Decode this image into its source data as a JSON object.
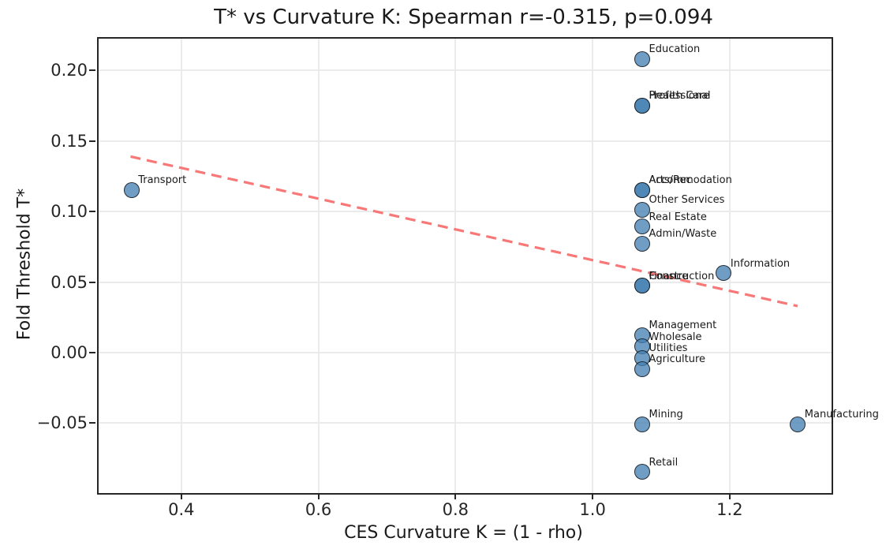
{
  "chart_data": {
    "type": "scatter",
    "title": "T* vs Curvature K: Spearman r=-0.315, p=0.094",
    "xlabel": "CES Curvature K = (1 - rho)",
    "ylabel": "Fold Threshold T*",
    "xlim": [
      0.2794,
      1.3486
    ],
    "ylim": [
      -0.0996,
      0.2226
    ],
    "grid": true,
    "legend": false,
    "x_ticks": {
      "values": [
        0.4,
        0.6,
        0.8,
        1.0,
        1.2
      ],
      "labels": [
        "0.4",
        "0.6",
        "0.8",
        "1.0",
        "1.2"
      ]
    },
    "y_ticks": {
      "values": [
        0.2,
        0.15,
        0.1,
        0.05,
        0.0,
        -0.05
      ],
      "labels": [
        "0.20",
        "0.15",
        "0.10",
        "0.05",
        "0.00",
        "−0.05"
      ]
    },
    "points": [
      {
        "label": "Education",
        "x": 1.073,
        "y": 0.208
      },
      {
        "label": "Health Care",
        "x": 1.073,
        "y": 0.175
      },
      {
        "label": "Professional",
        "x": 1.073,
        "y": 0.175
      },
      {
        "label": "Transport",
        "x": 0.328,
        "y": 0.115
      },
      {
        "label": "Arts/Rec",
        "x": 1.073,
        "y": 0.115
      },
      {
        "label": "Accommodation",
        "x": 1.073,
        "y": 0.115
      },
      {
        "label": "Other Services",
        "x": 1.073,
        "y": 0.101
      },
      {
        "label": "Real Estate",
        "x": 1.073,
        "y": 0.089
      },
      {
        "label": "Admin/Waste",
        "x": 1.073,
        "y": 0.077
      },
      {
        "label": "Information",
        "x": 1.192,
        "y": 0.056
      },
      {
        "label": "Construction",
        "x": 1.073,
        "y": 0.047
      },
      {
        "label": "Finance",
        "x": 1.073,
        "y": 0.047
      },
      {
        "label": "Management",
        "x": 1.073,
        "y": 0.012
      },
      {
        "label": "Wholesale",
        "x": 1.073,
        "y": 0.004
      },
      {
        "label": "Utilities",
        "x": 1.073,
        "y": -0.004
      },
      {
        "label": "Agriculture",
        "x": 1.073,
        "y": -0.012
      },
      {
        "label": "Mining",
        "x": 1.073,
        "y": -0.051
      },
      {
        "label": "Manufacturing",
        "x": 1.3,
        "y": -0.051
      },
      {
        "label": "Retail",
        "x": 1.073,
        "y": -0.085
      }
    ],
    "trend_line": {
      "style": "dashed",
      "x": [
        0.326,
        1.299
      ],
      "y": [
        0.139,
        0.033
      ]
    },
    "colors": {
      "marker_fill": "#4682b4",
      "marker_edge": "#111111",
      "trend": "#f87878",
      "grid": "#ebebeb",
      "spine": "#262626",
      "text": "#1a1a1a"
    }
  }
}
